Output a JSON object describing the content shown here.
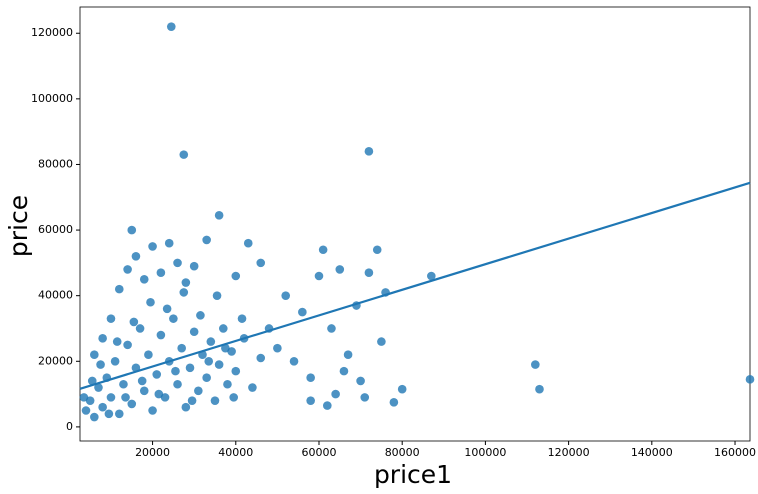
{
  "chart_data": {
    "type": "scatter",
    "xlabel": "price1",
    "ylabel": "price",
    "xlim": [
      2557,
      163600
    ],
    "ylim": [
      -4300,
      128000
    ],
    "xticks": [
      20000,
      40000,
      60000,
      80000,
      100000,
      120000,
      140000,
      160000
    ],
    "yticks": [
      0,
      20000,
      40000,
      60000,
      80000,
      100000,
      120000
    ],
    "grid": false,
    "series": [
      {
        "color": "#1f77b4",
        "x": [
          4000,
          5000,
          6000,
          7000,
          8000,
          9000,
          10000,
          11000,
          12000,
          13000,
          14000,
          15000,
          16000,
          17000,
          18000,
          19000,
          20000,
          21000,
          22000,
          23000,
          24000,
          25000,
          26000,
          27000,
          28000,
          29000,
          30000,
          31000,
          32000,
          33000,
          34000,
          35000,
          36000,
          37000,
          38000,
          39000,
          40000,
          42000,
          44000,
          46000,
          3500,
          5500,
          7500,
          9500,
          11500,
          13500,
          15500,
          17500,
          19500,
          21500,
          23500,
          25500,
          27500,
          29500,
          31500,
          33500,
          35500,
          37500,
          39500,
          41500,
          6000,
          8000,
          10000,
          12000,
          14000,
          15000,
          16000,
          18000,
          20000,
          22000,
          24000,
          26000,
          28000,
          30000,
          33000,
          36000,
          40000,
          43000,
          46000,
          48000,
          50000,
          52000,
          54000,
          56000,
          58000,
          60000,
          61000,
          63000,
          64000,
          65000,
          67000,
          69000,
          70000,
          72000,
          74000,
          75000,
          76000,
          78000,
          80000,
          58000,
          62000,
          66000,
          71000,
          24500,
          27500,
          72000,
          87000,
          112000,
          113000,
          163600
        ],
        "y": [
          5000,
          8000,
          3000,
          12000,
          6000,
          15000,
          9000,
          20000,
          4000,
          13000,
          25000,
          7000,
          18000,
          30000,
          11000,
          22000,
          5000,
          16000,
          28000,
          9000,
          20000,
          33000,
          13000,
          24000,
          6000,
          18000,
          29000,
          11000,
          22000,
          15000,
          26000,
          8000,
          19000,
          30000,
          13000,
          23000,
          17000,
          27000,
          12000,
          21000,
          9000,
          14000,
          19000,
          4000,
          26000,
          9000,
          32000,
          14000,
          38000,
          10000,
          36000,
          17000,
          41000,
          8000,
          34000,
          20000,
          40000,
          24000,
          9000,
          33000,
          22000,
          27000,
          33000,
          42000,
          48000,
          60000,
          52000,
          45000,
          55000,
          47000,
          56000,
          50000,
          44000,
          49000,
          57000,
          64500,
          46000,
          56000,
          50000,
          30000,
          24000,
          40000,
          20000,
          35000,
          15000,
          46000,
          54000,
          30000,
          10000,
          48000,
          22000,
          37000,
          14000,
          47000,
          54000,
          26000,
          41000,
          7500,
          11500,
          8000,
          6500,
          17000,
          9000,
          122000,
          83000,
          84000,
          46000,
          19000,
          11500,
          14500
        ]
      }
    ],
    "regression": {
      "color": "#1f77b4",
      "x": [
        2557,
        163600
      ],
      "y": [
        11600,
        74400
      ]
    }
  }
}
